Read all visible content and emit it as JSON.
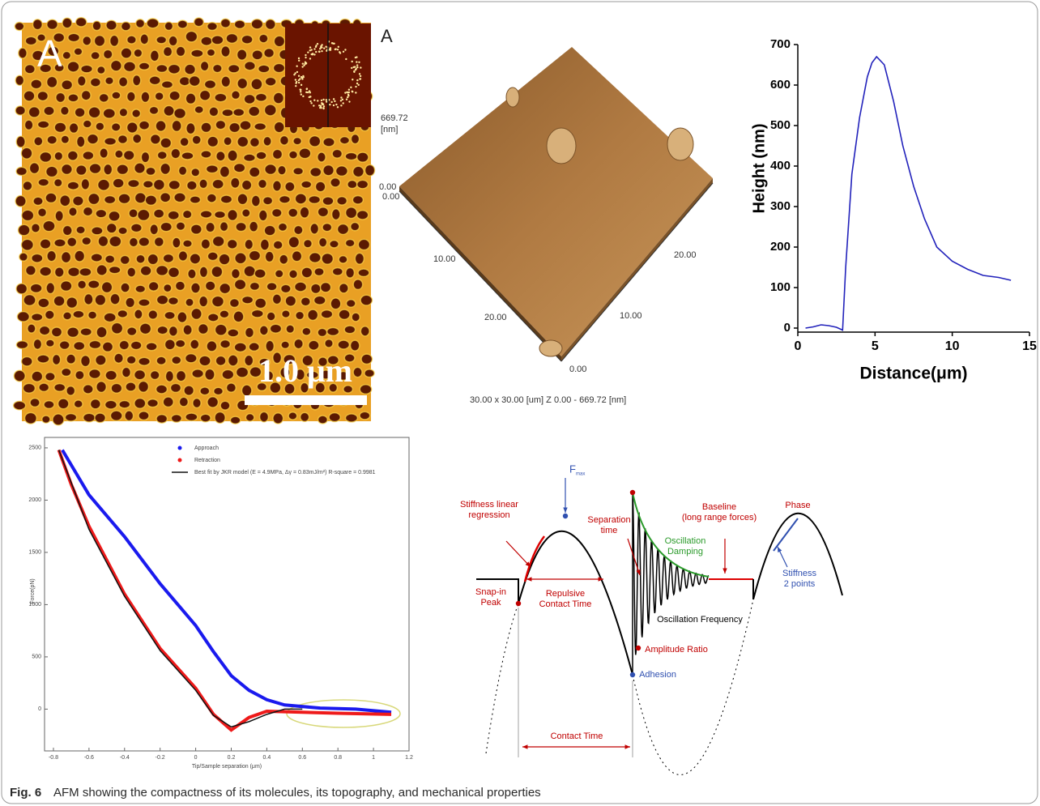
{
  "panel_a_image": {
    "label": "A",
    "scale_bar": "1.0 μm"
  },
  "topography": {
    "label": "A",
    "z_max": "669.72",
    "z_unit": "[nm]",
    "z_min": "0.00",
    "origin": "0.00",
    "left_ticks": [
      "10.00",
      "20.00"
    ],
    "right_ticks": [
      "20.00",
      "10.00"
    ],
    "corner": "0.00",
    "footer": "30.00 x 30.00 [um]   Z 0.00 - 669.72 [nm]"
  },
  "chart_data": [
    {
      "type": "line",
      "x_label": "Distance(μm)",
      "y_label": "Height (nm)",
      "color": "#2222bb",
      "x": [
        0.5,
        1.0,
        1.5,
        2.0,
        2.5,
        2.9,
        3.1,
        3.5,
        4.0,
        4.5,
        4.8,
        5.1,
        5.6,
        6.2,
        6.8,
        7.5,
        8.2,
        9.0,
        10.0,
        11.0,
        12.0,
        13.0,
        13.8
      ],
      "values": [
        0,
        3,
        8,
        6,
        2,
        -5,
        150,
        380,
        520,
        620,
        655,
        670,
        650,
        560,
        450,
        350,
        270,
        200,
        165,
        145,
        130,
        125,
        118
      ],
      "xlim": [
        0,
        15
      ],
      "xticks": [
        0,
        5,
        10,
        15
      ],
      "ylim": [
        -10,
        700
      ],
      "yticks": [
        0,
        100,
        200,
        300,
        400,
        500,
        600,
        700
      ]
    },
    {
      "type": "line",
      "x_label": "Tip/Sample separation (μm)",
      "y_label": "Force(pN)",
      "xlim": [
        -0.85,
        1.2
      ],
      "xticks": [
        -0.8,
        -0.6,
        -0.4,
        -0.2,
        0,
        0.2,
        0.4,
        0.6,
        0.8,
        1,
        1.2
      ],
      "ylim": [
        -400,
        2600
      ],
      "yticks": [
        0,
        500,
        1000,
        1500,
        2000,
        2500
      ],
      "series": [
        {
          "name": "Approach",
          "color": "#1a1aee",
          "x": [
            -0.75,
            -0.6,
            -0.4,
            -0.2,
            0,
            0.1,
            0.2,
            0.3,
            0.4,
            0.5,
            0.7,
            0.9,
            1.1
          ],
          "values": [
            2480,
            2050,
            1650,
            1200,
            800,
            550,
            320,
            180,
            90,
            40,
            10,
            0,
            -30
          ]
        },
        {
          "name": "Retraction",
          "color": "#ee1a1a",
          "x": [
            -0.77,
            -0.7,
            -0.6,
            -0.4,
            -0.2,
            0,
            0.1,
            0.2,
            0.3,
            0.4,
            0.6,
            0.8,
            1.1
          ],
          "values": [
            2480,
            2150,
            1750,
            1100,
            580,
            200,
            -50,
            -200,
            -80,
            -20,
            -30,
            -40,
            -50
          ]
        },
        {
          "name": "Best fit by JKR model (E = 4.9MPa, Δγ = 0.83mJ/m²) R-square = 0.9981",
          "color": "#111111",
          "x": [
            -0.77,
            -0.6,
            -0.4,
            -0.2,
            0,
            0.1,
            0.2,
            0.3,
            0.4,
            0.5,
            0.6
          ],
          "values": [
            2480,
            1720,
            1080,
            560,
            180,
            -60,
            -170,
            -120,
            -50,
            0,
            0
          ]
        }
      ]
    }
  ],
  "diagram": {
    "f_max": "F",
    "f_max_sub": "max",
    "stiffness_linear": [
      "Stiffness linear",
      "regression"
    ],
    "separation_time": [
      "Separation",
      "time"
    ],
    "baseline": [
      "Baseline",
      "(long range forces)"
    ],
    "phase": "Phase",
    "oscillation_damping": [
      "Oscillation",
      "Damping"
    ],
    "snap_in": [
      "Snap-in",
      "Peak"
    ],
    "repulsive": [
      "Repulsive",
      "Contact Time"
    ],
    "stiffness_2": [
      "Stiffness",
      "2 points"
    ],
    "oscillation_frequency": "Oscillation Frequency",
    "amplitude_ratio": "Amplitude Ratio",
    "adhesion": "Adhesion",
    "contact_time": "Contact Time"
  },
  "caption": {
    "label": "Fig. 6",
    "text": "AFM showing the compactness of its molecules, its topography, and mechanical properties"
  }
}
